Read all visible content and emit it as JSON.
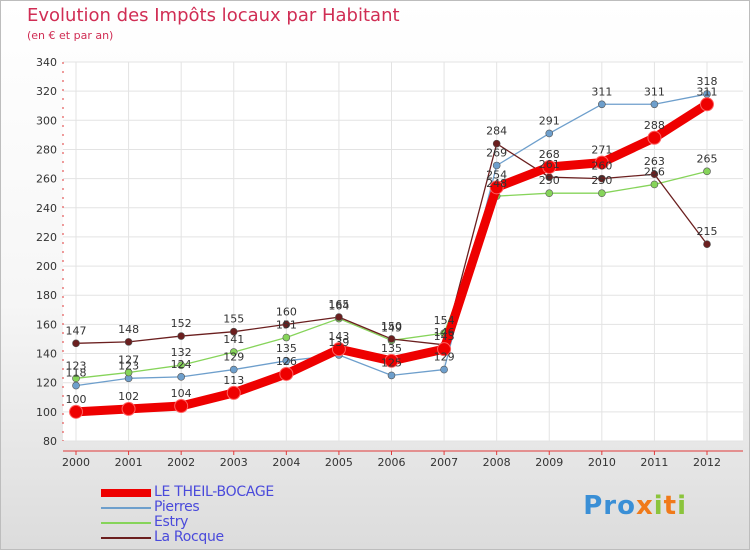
{
  "header": {
    "title": "Evolution des Impôts locaux par Habitant",
    "subtitle": "(en € et par an)"
  },
  "brand": {
    "p1": "Pro",
    "x": "x",
    "i1": "i",
    "t": "t",
    "i2": "i"
  },
  "chart_data": {
    "type": "line",
    "title": "Evolution des Impôts locaux par Habitant",
    "subtitle": "(en € et par an)",
    "x": [
      "2000",
      "2001",
      "2002",
      "2003",
      "2004",
      "2005",
      "2006",
      "2007",
      "2008",
      "2009",
      "2010",
      "2011",
      "2012"
    ],
    "ylim": [
      80,
      340
    ],
    "yticks": [
      80,
      100,
      120,
      140,
      160,
      180,
      200,
      220,
      240,
      260,
      280,
      300,
      320,
      340
    ],
    "grid": true,
    "legend_position": "bottom-left",
    "series": [
      {
        "name": "LE THEIL-BOCAGE",
        "color": "#ee0000",
        "values": [
          100,
          102,
          104,
          113,
          126,
          143,
          135,
          143,
          254,
          268,
          271,
          288,
          311
        ]
      },
      {
        "name": "Pierres",
        "color": "#6e9fcc",
        "values": [
          118,
          123,
          124,
          129,
          135,
          139,
          125,
          129,
          269,
          291,
          311,
          311,
          318
        ]
      },
      {
        "name": "Estry",
        "color": "#86d45a",
        "values": [
          123,
          127,
          132,
          141,
          151,
          164,
          149,
          154,
          248,
          250,
          250,
          256,
          265
        ]
      },
      {
        "name": "La Rocque",
        "color": "#6b1f1f",
        "values": [
          147,
          148,
          152,
          155,
          160,
          165,
          150,
          146,
          284,
          261,
          260,
          263,
          215
        ]
      }
    ]
  }
}
